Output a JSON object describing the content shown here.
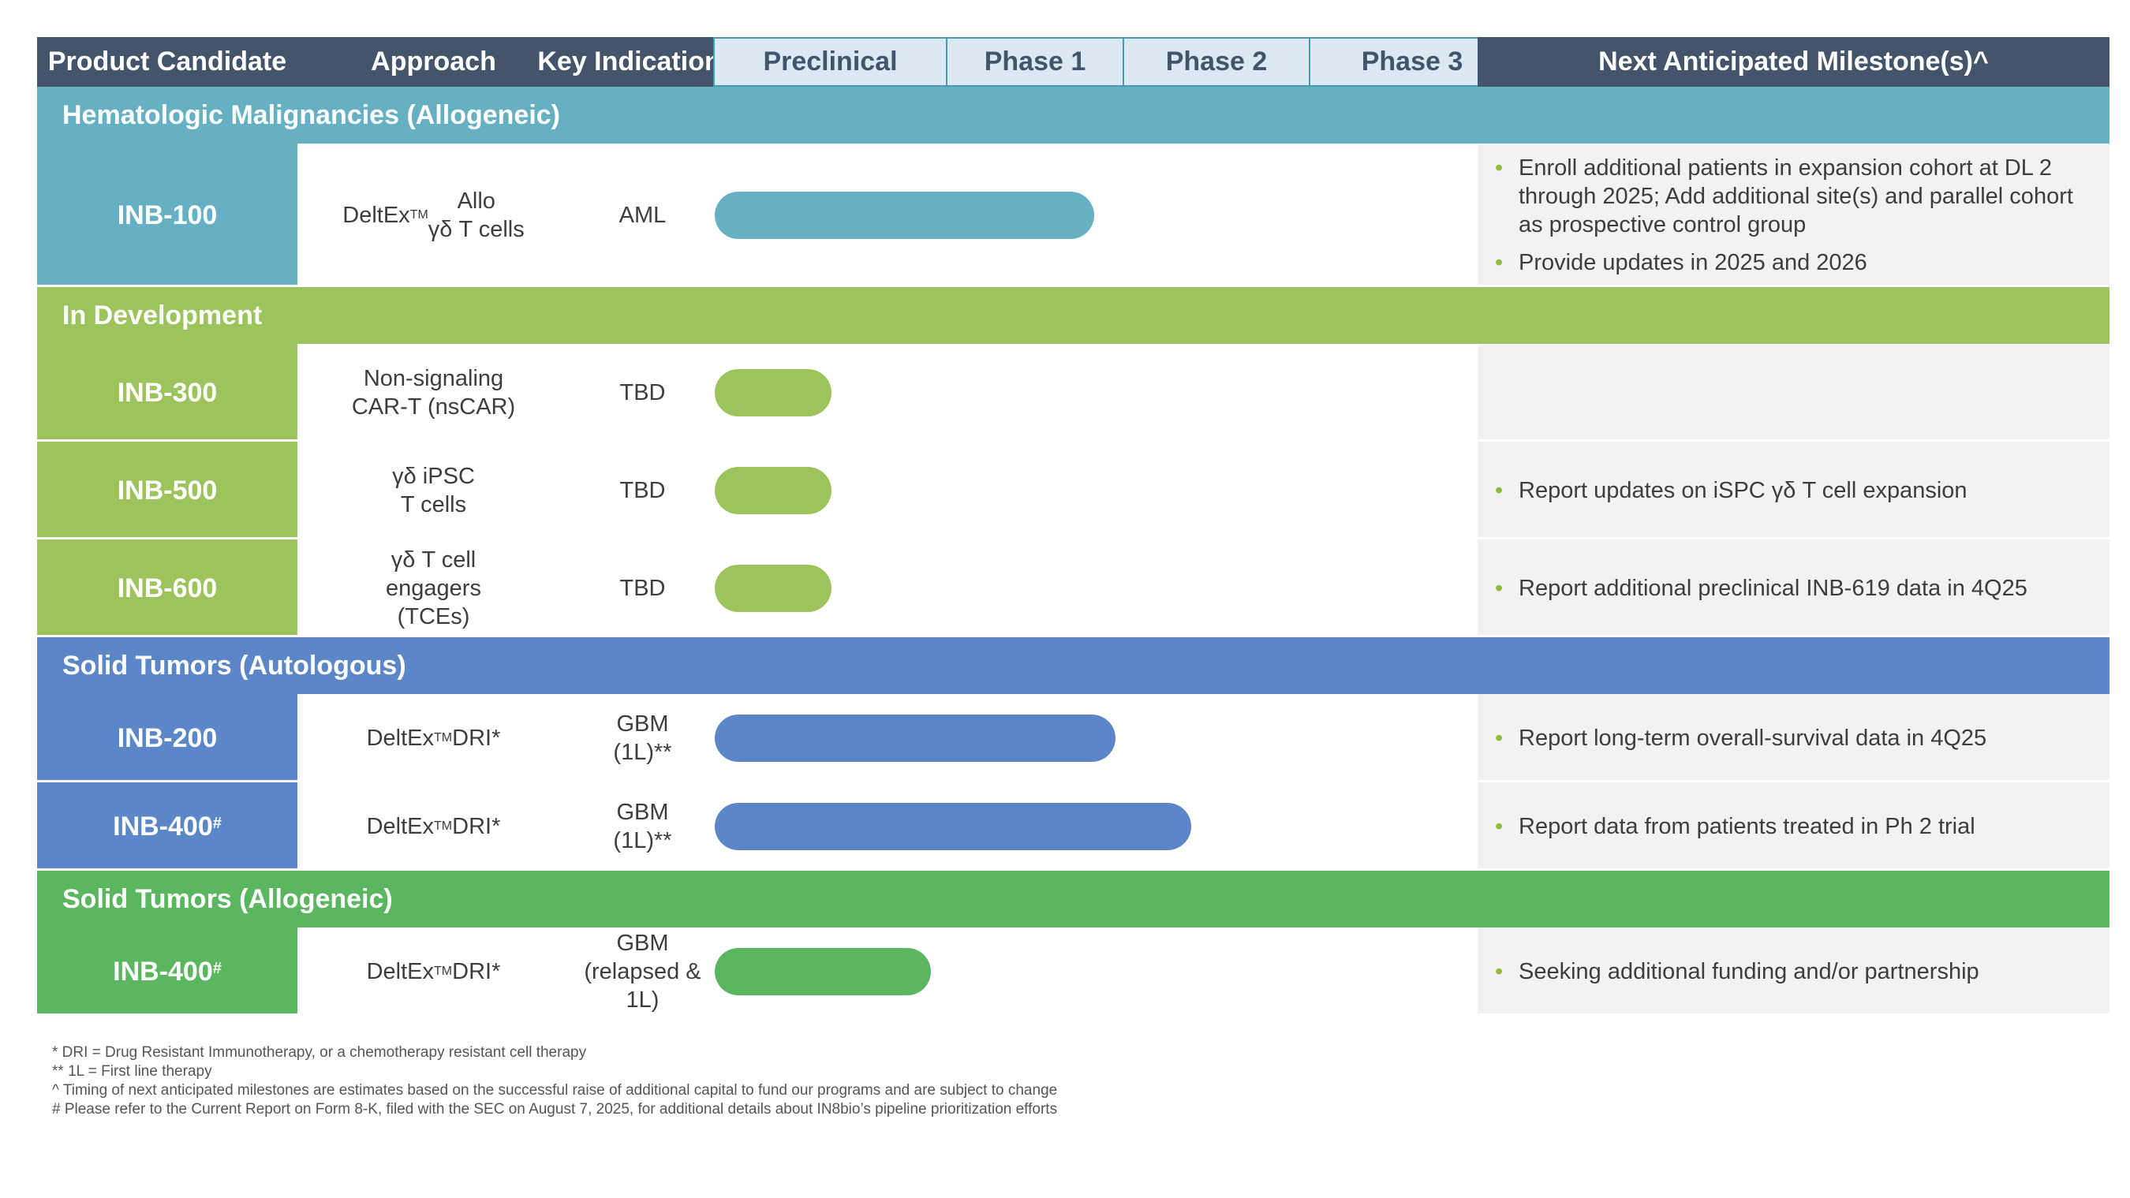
{
  "header": {
    "product_candidate": "Product Candidate",
    "approach": "Approach",
    "key_indications": "Key Indications",
    "preclinical": "Preclinical",
    "phase1": "Phase 1",
    "phase2": "Phase 2",
    "phase3": "Phase 3",
    "milestones": "Next Anticipated Milestone(s)^"
  },
  "colors": {
    "header_dark": "#44546a",
    "header_phase_bg": "#dbe9f4",
    "teal": "#65b1c3",
    "lime": "#9dc35c",
    "blue": "#5b87c9",
    "green": "#5bb660",
    "bullet": "#8fbb3e"
  },
  "sections": [
    {
      "title": "Hematologic Malignancies (Allogeneic)",
      "color": "#65b1c3",
      "rows": [
        {
          "candidate": "INB-100",
          "sup": "",
          "approach_main": "DeltEx",
          "approach_tm": "TM",
          "approach_rest": " Allo\nγδ T cells",
          "indication": "AML",
          "progress_stage": "Phase 1 (approx. 0.83 of the Phase 1 column)",
          "progress": 1.83,
          "milestones": [
            "Enroll additional patients in expansion cohort at DL 2 through 2025; Add additional site(s) and parallel cohort as prospective control group",
            "Provide updates in 2025 and 2026"
          ]
        }
      ]
    },
    {
      "title": "In Development",
      "color": "#9dc35c",
      "rows": [
        {
          "candidate": "INB-300",
          "sup": "",
          "approach_main": "Non-signaling\nCAR-T (nsCAR)",
          "approach_tm": "",
          "approach_rest": "",
          "indication": "TBD",
          "progress": 0.5,
          "milestones": []
        },
        {
          "candidate": "INB-500",
          "sup": "",
          "approach_main": "γδ iPSC\nT cells",
          "approach_tm": "",
          "approach_rest": "",
          "indication": "TBD",
          "progress": 0.5,
          "milestones": [
            "Report updates on iSPC γδ T cell expansion"
          ]
        },
        {
          "candidate": "INB-600",
          "sup": "",
          "approach_main": "γδ T cell\nengagers\n(TCEs)",
          "approach_tm": "",
          "approach_rest": "",
          "indication": "TBD",
          "progress": 0.5,
          "milestones": [
            "Report additional preclinical INB-619 data in 4Q25"
          ]
        }
      ]
    },
    {
      "title": "Solid Tumors (Autologous)",
      "color": "#5b87c9",
      "rows": [
        {
          "candidate": "INB-200",
          "sup": "",
          "approach_main": "DeltEx",
          "approach_tm": "TM",
          "approach_rest": " DRI*",
          "indication": "GBM\n(1L)**",
          "progress": 1.95,
          "milestones": [
            "Report long-term overall-survival data in 4Q25"
          ]
        },
        {
          "candidate": "INB-400",
          "sup": "#",
          "approach_main": "DeltEx",
          "approach_tm": "TM",
          "approach_rest": " DRI*",
          "indication": "GBM\n(1L)**",
          "progress": 2.36,
          "milestones": [
            "Report data from patients treated in Ph 2 trial"
          ]
        }
      ]
    },
    {
      "title": "Solid Tumors (Allogeneic)",
      "color": "#5bb660",
      "rows": [
        {
          "candidate": "INB-400",
          "sup": "#",
          "approach_main": "DeltEx",
          "approach_tm": "TM",
          "approach_rest": " DRI*",
          "indication": "GBM\n(relapsed & 1L)",
          "progress": 0.93,
          "milestones": [
            "Seeking additional funding and/or partnership"
          ]
        }
      ]
    }
  ],
  "footnotes": [
    "*  DRI = Drug Resistant Immunotherapy, or a chemotherapy resistant cell therapy",
    "** 1L = First line therapy",
    "^ Timing of next anticipated milestones are estimates based on the successful raise of additional capital to fund our programs and are subject to change",
    "# Please refer to the Current Report on Form 8-K, filed with the SEC on August 7, 2025, for additional details about IN8bio’s pipeline prioritization efforts"
  ]
}
